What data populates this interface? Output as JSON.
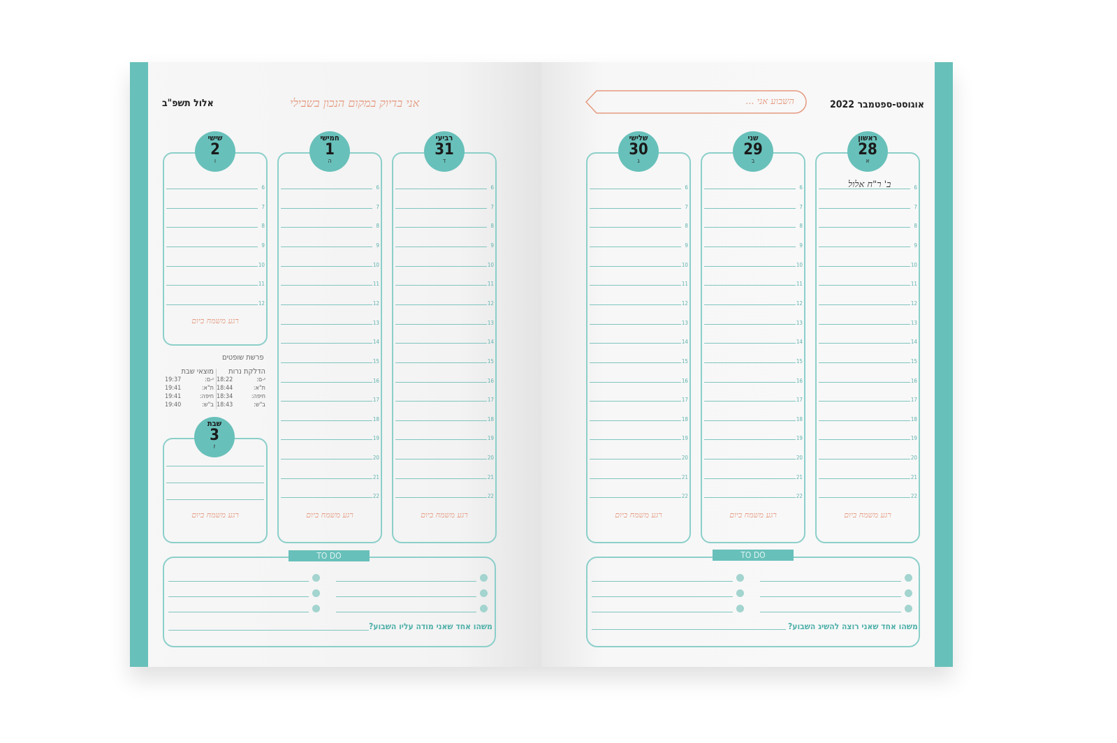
{
  "left_page": {
    "hebrew_month": "אלול תשפ\"ב",
    "motto": "אני בדיוק במקום הנכון בשבילי",
    "days": [
      {
        "name": "רביעי",
        "date": "31",
        "hebrew": "ד",
        "footer": "רגע משמח ביום"
      },
      {
        "name": "חמישי",
        "date": "1",
        "hebrew": "ה",
        "footer": "רגע משמח ביום"
      },
      {
        "name": "שישי",
        "date": "2",
        "hebrew": "ו",
        "footer": "רגע משמח ביום"
      }
    ],
    "shabbat": {
      "name": "שבת",
      "date": "3",
      "hebrew": "ז",
      "footer": "רגע משמח ביום"
    },
    "parasha": "פרשת שופטים",
    "candle_lighting": {
      "title": "הדלקת נרות",
      "rows": [
        [
          "י-ם:",
          "18:22"
        ],
        [
          "ת\"א:",
          "18:44"
        ],
        [
          "חיפה:",
          "18:34"
        ],
        [
          "ב\"ש:",
          "18:43"
        ]
      ]
    },
    "havdalah": {
      "title": "מוצאי שבת",
      "rows": [
        [
          "י-ם:",
          "19:37"
        ],
        [
          "ת\"א:",
          "19:41"
        ],
        [
          "חיפה:",
          "19:41"
        ],
        [
          "ב\"ש:",
          "19:40"
        ]
      ]
    },
    "todo_label": "TO DO",
    "question": "משהו אחד שאני מודה עליו השבוע?"
  },
  "right_page": {
    "month_title": "אוגוסט-ספטמבר 2022",
    "week_prompt": "השבוע אני ...",
    "days": [
      {
        "name": "שלישי",
        "date": "30",
        "hebrew": "ג",
        "footer": "רגע משמח ביום"
      },
      {
        "name": "שני",
        "date": "29",
        "hebrew": "ב",
        "footer": "רגע משמח ביום"
      },
      {
        "name": "ראשון",
        "date": "28",
        "hebrew": "א",
        "footer": "רגע משמח ביום",
        "note": "ב' ר\"ח אלול"
      }
    ],
    "todo_label": "TO DO",
    "question": "משהו אחד שאני רוצה להשיג השבוע?"
  },
  "hours": [
    6,
    7,
    8,
    9,
    10,
    11,
    12,
    13,
    14,
    15,
    16,
    17,
    18,
    19,
    20,
    21,
    22
  ],
  "friday_hours": [
    6,
    7,
    8,
    9,
    10,
    11,
    12
  ],
  "colors": {
    "teal": "#68c0ba",
    "line": "#8ccfca",
    "accent": "#e59a80"
  }
}
